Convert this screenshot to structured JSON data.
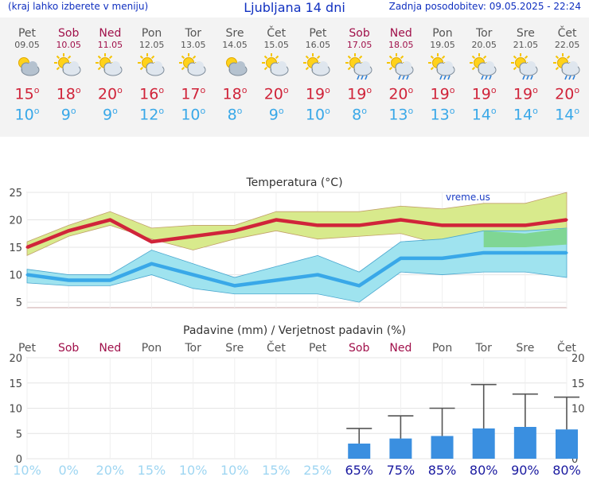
{
  "header": {
    "left": "(kraj lahko izberete v meniju)",
    "title": "Ljubljana 14 dni",
    "right": "Zadnja posodobitev: 09.05.2025 - 22:24"
  },
  "colors": {
    "max": "#d0243a",
    "min": "#39a8e8",
    "weekend": "#a0104a",
    "bar": "#3a8fe0"
  },
  "days": [
    {
      "name": "Pet",
      "date": "09.05",
      "weekend": false,
      "icon": "partly-cloudy-icon",
      "max": "15",
      "min": "10"
    },
    {
      "name": "Sob",
      "date": "10.05",
      "weekend": true,
      "icon": "sun-cloud-icon",
      "max": "18",
      "min": "9"
    },
    {
      "name": "Ned",
      "date": "11.05",
      "weekend": true,
      "icon": "sun-cloud-icon",
      "max": "20",
      "min": "9"
    },
    {
      "name": "Pon",
      "date": "12.05",
      "weekend": false,
      "icon": "sun-cloud-icon",
      "max": "16",
      "min": "12"
    },
    {
      "name": "Tor",
      "date": "13.05",
      "weekend": false,
      "icon": "sun-cloud-icon",
      "max": "17",
      "min": "10"
    },
    {
      "name": "Sre",
      "date": "14.05",
      "weekend": false,
      "icon": "partly-cloudy-icon",
      "max": "18",
      "min": "8"
    },
    {
      "name": "Čet",
      "date": "15.05",
      "weekend": false,
      "icon": "sun-cloud-icon",
      "max": "20",
      "min": "9"
    },
    {
      "name": "Pet",
      "date": "16.05",
      "weekend": false,
      "icon": "sun-cloud-icon",
      "max": "19",
      "min": "10"
    },
    {
      "name": "Sob",
      "date": "17.05",
      "weekend": true,
      "icon": "sun-rain-icon",
      "max": "19",
      "min": "8"
    },
    {
      "name": "Ned",
      "date": "18.05",
      "weekend": true,
      "icon": "sun-rain-icon",
      "max": "20",
      "min": "13"
    },
    {
      "name": "Pon",
      "date": "19.05",
      "weekend": false,
      "icon": "sun-rain-icon",
      "max": "19",
      "min": "13"
    },
    {
      "name": "Tor",
      "date": "20.05",
      "weekend": false,
      "icon": "sun-rain-icon",
      "max": "19",
      "min": "14"
    },
    {
      "name": "Sre",
      "date": "21.05",
      "weekend": false,
      "icon": "sun-rain-icon",
      "max": "19",
      "min": "14"
    },
    {
      "name": "Čet",
      "date": "22.05",
      "weekend": false,
      "icon": "sun-rain-icon",
      "max": "20",
      "min": "14"
    }
  ],
  "chart_data": [
    {
      "type": "line",
      "title": "Temperatura (°C)",
      "watermark": "vreme.us",
      "ylim": [
        4,
        25
      ],
      "yticks": [
        5,
        10,
        15,
        20,
        25
      ],
      "series": [
        {
          "role": "max",
          "values": [
            15,
            18,
            20,
            16,
            17,
            18,
            20,
            19,
            19,
            20,
            19,
            19,
            19,
            20
          ]
        },
        {
          "role": "min",
          "values": [
            10,
            9,
            9,
            12,
            10,
            8,
            9,
            10,
            8,
            13,
            13,
            14,
            14,
            14
          ]
        }
      ],
      "bands": {
        "max_high": [
          16,
          19,
          21.5,
          18.5,
          19,
          19,
          21.5,
          21.5,
          21.5,
          22.5,
          22,
          23,
          23,
          25
        ],
        "max_low": [
          13.5,
          17,
          19,
          16.5,
          14.5,
          16.5,
          18,
          16.5,
          17,
          17.5,
          15.5,
          15,
          15,
          15.5
        ],
        "min_high": [
          11,
          10,
          10,
          14.5,
          12,
          9.5,
          11.5,
          13.5,
          10.5,
          16,
          16.5,
          18,
          18,
          18.5
        ],
        "min_low": [
          8.5,
          8,
          8,
          10,
          7.5,
          6.5,
          6.5,
          6.5,
          5,
          10.5,
          10,
          10.5,
          10.5,
          9.5
        ],
        "overlap_high": [
          null,
          null,
          null,
          null,
          null,
          null,
          null,
          null,
          null,
          null,
          null,
          18,
          17.5,
          18.5
        ],
        "overlap_low": [
          null,
          null,
          null,
          null,
          null,
          null,
          null,
          null,
          null,
          null,
          null,
          15,
          15,
          15.5
        ]
      }
    },
    {
      "type": "bar",
      "title": "Padavine (mm) / Verjetnost padavin (%)",
      "ylim": [
        0,
        20
      ],
      "yticks": [
        0,
        5,
        10,
        15,
        20
      ],
      "categories": [
        "Pet",
        "Sob",
        "Ned",
        "Pon",
        "Tor",
        "Sre",
        "Čet",
        "Pet",
        "Sob",
        "Ned",
        "Pon",
        "Tor",
        "Sre",
        "Čet"
      ],
      "values": [
        0,
        0,
        0,
        0,
        0,
        0,
        0,
        0,
        3,
        4,
        4.5,
        6,
        6.3,
        5.8
      ],
      "error_high": [
        0,
        0,
        0,
        0,
        0,
        0,
        0,
        0,
        6,
        8.5,
        10,
        14.7,
        12.8,
        12.2
      ],
      "probability": [
        "10%",
        "0%",
        "20%",
        "15%",
        "10%",
        "10%",
        "15%",
        "25%",
        "65%",
        "75%",
        "85%",
        "80%",
        "90%",
        "80%"
      ]
    }
  ]
}
